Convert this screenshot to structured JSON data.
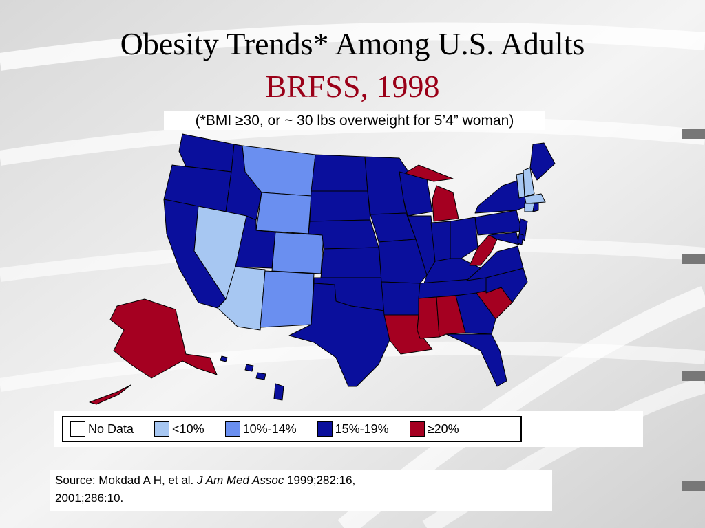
{
  "title": {
    "line1": "Obesity Trends* Among U.S. Adults",
    "line2": "BRFSS, 1998"
  },
  "subtitle": "(*BMI ≥30, or ~ 30 lbs overweight for 5’4” woman)",
  "legend": [
    {
      "label": "No Data",
      "color": "#ffffff"
    },
    {
      "label": "<10%",
      "color": "#a7c7f2"
    },
    {
      "label": "10%-14%",
      "color": "#6a8ff0"
    },
    {
      "label": "15%-19%",
      "color": "#0a0f9c"
    },
    {
      "label": "≥20%",
      "color": "#a50021"
    }
  ],
  "source": {
    "prefix": "Source: Mokdad A H, et al. ",
    "journal": "J Am Med Assoc",
    "suffix": " 1999;282:16,",
    "line2": "2001;286:10."
  },
  "map_colors": {
    "lt10": "#a7c7f2",
    "p10_14": "#6a8ff0",
    "p15_19": "#0a0f9c",
    "ge20": "#a50021"
  }
}
